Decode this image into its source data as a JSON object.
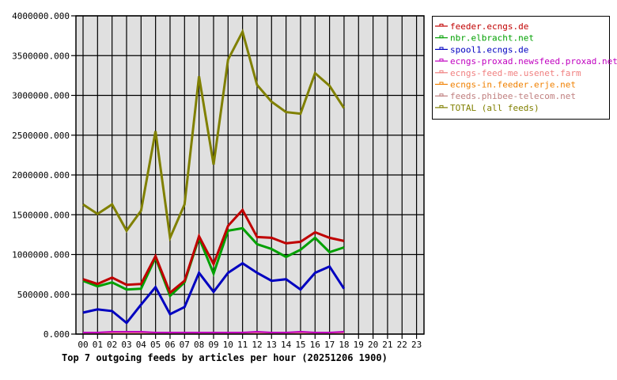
{
  "chart_data": {
    "type": "line",
    "title": "Top 7 outgoing feeds by articles per hour (20251206 1900)",
    "xlabel": "",
    "ylabel": "",
    "ylim": [
      0,
      4000000
    ],
    "grid": true,
    "legend_position": "right-top",
    "y_ticks": [
      "0.000",
      "500000.000",
      "1000000.000",
      "1500000.000",
      "2000000.000",
      "2500000.000",
      "3000000.000",
      "3500000.000",
      "4000000.000"
    ],
    "y_tick_values": [
      0,
      500000,
      1000000,
      1500000,
      2000000,
      2500000,
      3000000,
      3500000,
      4000000
    ],
    "categories": [
      "00",
      "01",
      "02",
      "03",
      "04",
      "05",
      "06",
      "07",
      "08",
      "09",
      "10",
      "11",
      "12",
      "13",
      "14",
      "15",
      "16",
      "17",
      "18",
      "19",
      "20",
      "21",
      "22",
      "23"
    ],
    "series": [
      {
        "name": "feeder.ecngs.de",
        "color": "#c00000",
        "width": 3,
        "values": [
          690000,
          630000,
          710000,
          620000,
          630000,
          980000,
          520000,
          670000,
          1230000,
          880000,
          1360000,
          1560000,
          1220000,
          1210000,
          1140000,
          1160000,
          1280000,
          1210000,
          1170000
        ]
      },
      {
        "name": "nbr.elbracht.net",
        "color": "#00a000",
        "width": 3,
        "values": [
          670000,
          600000,
          650000,
          560000,
          570000,
          960000,
          480000,
          650000,
          1210000,
          760000,
          1300000,
          1330000,
          1130000,
          1070000,
          970000,
          1060000,
          1210000,
          1030000,
          1090000
        ]
      },
      {
        "name": "spool1.ecngs.de",
        "color": "#0000c0",
        "width": 3,
        "values": [
          270000,
          310000,
          290000,
          140000,
          370000,
          590000,
          250000,
          340000,
          770000,
          530000,
          770000,
          890000,
          770000,
          670000,
          690000,
          560000,
          770000,
          850000,
          570000
        ]
      },
      {
        "name": "ecngs-proxad.newsfeed.proxad.net",
        "color": "#c000c0",
        "width": 2,
        "values": [
          20000,
          20000,
          30000,
          30000,
          30000,
          20000,
          20000,
          20000,
          20000,
          20000,
          20000,
          20000,
          30000,
          20000,
          20000,
          30000,
          20000,
          20000,
          30000
        ]
      },
      {
        "name": "ecngs-feed-me.usenet.farm",
        "color": "#f08080",
        "width": 2,
        "values": [
          15000,
          15000,
          15000,
          15000,
          15000,
          10000,
          15000,
          10000,
          15000,
          10000,
          15000,
          15000,
          15000,
          15000,
          15000,
          15000,
          15000,
          10000,
          10000
        ]
      },
      {
        "name": "ecngs-in.feeder.erje.net",
        "color": "#f08000",
        "width": 2,
        "values": [
          10000,
          10000,
          10000,
          10000,
          10000,
          10000,
          10000,
          10000,
          10000,
          10000,
          10000,
          10000,
          10000,
          10000,
          10000,
          10000,
          10000,
          10000,
          10000
        ]
      },
      {
        "name": "feeds.phibee-telecom.net",
        "color": "#c08080",
        "width": 2,
        "values": [
          15000,
          15000,
          15000,
          15000,
          15000,
          10000,
          15000,
          10000,
          15000,
          10000,
          15000,
          15000,
          15000,
          15000,
          15000,
          15000,
          15000,
          10000,
          10000
        ]
      },
      {
        "name": "TOTAL (all feeds)",
        "color": "#808000",
        "width": 3,
        "values": [
          1630000,
          1510000,
          1630000,
          1300000,
          1550000,
          2550000,
          1210000,
          1630000,
          3240000,
          2130000,
          3450000,
          3800000,
          3130000,
          2920000,
          2790000,
          2770000,
          3280000,
          3120000,
          2840000
        ]
      }
    ]
  },
  "legend": {
    "items": [
      {
        "label": "feeder.ecngs.de",
        "color": "#c00000"
      },
      {
        "label": "nbr.elbracht.net",
        "color": "#00a000"
      },
      {
        "label": "spool1.ecngs.de",
        "color": "#0000c0"
      },
      {
        "label": "ecngs-proxad.newsfeed.proxad.net",
        "color": "#c000c0"
      },
      {
        "label": "ecngs-feed-me.usenet.farm",
        "color": "#f08080"
      },
      {
        "label": "ecngs-in.feeder.erje.net",
        "color": "#f08000"
      },
      {
        "label": "feeds.phibee-telecom.net",
        "color": "#c08080"
      },
      {
        "label": "TOTAL (all feeds)",
        "color": "#808000"
      }
    ]
  },
  "colors": {
    "plot_background": "#e0e0e0",
    "grid": "#000000",
    "page_background": "#ffffff"
  }
}
